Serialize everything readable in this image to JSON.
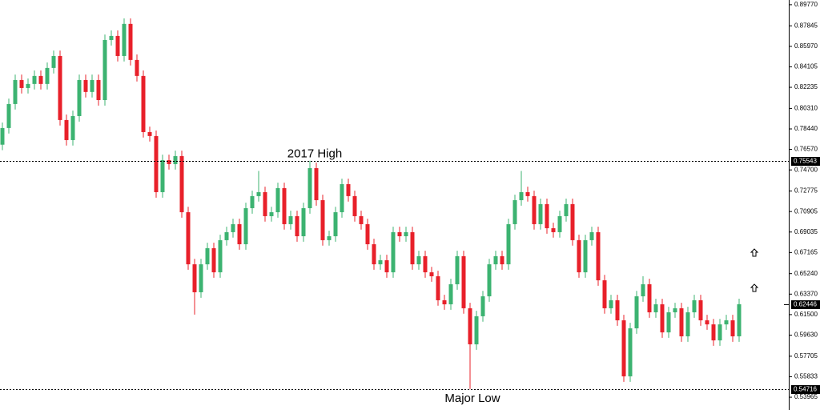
{
  "chart_data": {
    "type": "candlestick",
    "ylim": [
      0.528,
      0.902
    ],
    "yticks": [
      {
        "value": 0.8977,
        "label": "0.89770"
      },
      {
        "value": 0.87845,
        "label": "0.87845"
      },
      {
        "value": 0.8597,
        "label": "0.85970"
      },
      {
        "value": 0.84105,
        "label": "0.84105"
      },
      {
        "value": 0.82235,
        "label": "0.82235"
      },
      {
        "value": 0.8031,
        "label": "0.80310"
      },
      {
        "value": 0.7844,
        "label": "0.78440"
      },
      {
        "value": 0.7657,
        "label": "0.76570"
      },
      {
        "value": 0.747,
        "label": "0.74700"
      },
      {
        "value": 0.72775,
        "label": "0.72775"
      },
      {
        "value": 0.70905,
        "label": "0.70905"
      },
      {
        "value": 0.69035,
        "label": "0.69035"
      },
      {
        "value": 0.67165,
        "label": "0.67165"
      },
      {
        "value": 0.6524,
        "label": "0.65240"
      },
      {
        "value": 0.6337,
        "label": "0.63370"
      },
      {
        "value": 0.615,
        "label": "0.61500"
      },
      {
        "value": 0.5963,
        "label": "0.59630"
      },
      {
        "value": 0.57705,
        "label": "0.57705"
      },
      {
        "value": 0.55833,
        "label": "0.55833"
      },
      {
        "value": 0.53965,
        "label": "0.53965"
      }
    ],
    "up_color": "#3cb371",
    "down_color": "#e8202a",
    "levels": [
      {
        "value": 0.75543,
        "label": "0.75543",
        "annotation": "2017 High",
        "dashed": true
      },
      {
        "value": 0.54716,
        "label": "0.54716",
        "annotation": "Major Low",
        "dashed": true
      },
      {
        "value": 0.62446,
        "label": "0.62446",
        "dashed": false
      }
    ],
    "open": [
      0.77,
      0.7852,
      0.8071,
      0.829,
      0.8217,
      0.8254,
      0.8327,
      0.8254,
      0.84,
      0.8509,
      0.7925,
      0.7742,
      0.7961,
      0.829,
      0.8181,
      0.829,
      0.8107,
      0.8655,
      0.8692,
      0.8509,
      0.8802,
      0.8473,
      0.8327,
      0.7815,
      0.7779,
      0.7267,
      0.7559,
      0.7523,
      0.7596,
      0.7084,
      0.6609,
      0.6354,
      0.6609,
      0.6756,
      0.6536,
      0.6829,
      0.6902,
      0.6975,
      0.6792,
      0.7121,
      0.7231,
      0.7267,
      0.7048,
      0.7084,
      0.7304,
      0.6975,
      0.7048,
      0.6865,
      0.7121,
      0.7486,
      0.7194,
      0.6829,
      0.6865,
      0.7084,
      0.734,
      0.7231,
      0.7048,
      0.6975,
      0.6792,
      0.6609,
      0.6646,
      0.6536,
      0.6902,
      0.6865,
      0.6902,
      0.6609,
      0.6683,
      0.6536,
      0.65,
      0.6281,
      0.6244,
      0.6427,
      0.6683,
      0.6208,
      0.5879,
      0.6135,
      0.6317,
      0.6609,
      0.6683,
      0.6609,
      0.6975,
      0.7194,
      0.7267,
      0.7231,
      0.6975,
      0.7158,
      0.6938,
      0.6902,
      0.7048,
      0.7158,
      0.6829,
      0.6536,
      0.6829,
      0.6902,
      0.6463,
      0.6208,
      0.6281,
      0.6098,
      0.5587,
      0.6025,
      0.6317,
      0.6427,
      0.6171,
      0.6244,
      0.5988,
      0.6171,
      0.6208,
      0.5952,
      0.6171,
      0.6281,
      0.6098,
      0.6061,
      0.5915,
      0.6061,
      0.6098,
      0.5952
    ],
    "high": [
      0.7902,
      0.8121,
      0.834,
      0.834,
      0.8304,
      0.8377,
      0.8377,
      0.845,
      0.8559,
      0.8559,
      0.7975,
      0.8011,
      0.834,
      0.834,
      0.834,
      0.834,
      0.8705,
      0.8742,
      0.8742,
      0.8852,
      0.8852,
      0.8523,
      0.8377,
      0.7865,
      0.7829,
      0.7609,
      0.7609,
      0.7646,
      0.7646,
      0.7134,
      0.6659,
      0.6659,
      0.6806,
      0.6806,
      0.6879,
      0.6952,
      0.7025,
      0.7025,
      0.7171,
      0.7281,
      0.746,
      0.7317,
      0.7134,
      0.7354,
      0.7354,
      0.7098,
      0.7098,
      0.7171,
      0.7554,
      0.7536,
      0.7244,
      0.6915,
      0.7134,
      0.739,
      0.739,
      0.7281,
      0.7098,
      0.7025,
      0.6842,
      0.6696,
      0.6696,
      0.6952,
      0.6952,
      0.6952,
      0.6952,
      0.6733,
      0.6733,
      0.6586,
      0.655,
      0.6331,
      0.6477,
      0.6733,
      0.6733,
      0.6258,
      0.6185,
      0.6367,
      0.6659,
      0.6733,
      0.6733,
      0.7025,
      0.7244,
      0.746,
      0.7317,
      0.7281,
      0.7208,
      0.7208,
      0.6988,
      0.7098,
      0.7208,
      0.7208,
      0.6879,
      0.6879,
      0.6952,
      0.6952,
      0.6513,
      0.6331,
      0.6331,
      0.6148,
      0.6075,
      0.6367,
      0.65,
      0.6477,
      0.6294,
      0.6294,
      0.6221,
      0.6258,
      0.6258,
      0.6221,
      0.6331,
      0.6331,
      0.6148,
      0.6111,
      0.6111,
      0.6148,
      0.6148,
      0.6295
    ],
    "low": [
      0.765,
      0.7802,
      0.8021,
      0.8167,
      0.8167,
      0.8204,
      0.8204,
      0.8204,
      0.835,
      0.7875,
      0.7692,
      0.7692,
      0.7911,
      0.8131,
      0.8131,
      0.8057,
      0.8057,
      0.8605,
      0.8459,
      0.8459,
      0.8423,
      0.8277,
      0.7765,
      0.7729,
      0.7217,
      0.7217,
      0.7473,
      0.7473,
      0.7034,
      0.6559,
      0.615,
      0.6304,
      0.6559,
      0.6486,
      0.6486,
      0.6779,
      0.6852,
      0.6742,
      0.6742,
      0.7071,
      0.7181,
      0.6998,
      0.6998,
      0.7034,
      0.6925,
      0.6925,
      0.6815,
      0.6815,
      0.7071,
      0.7144,
      0.6779,
      0.6779,
      0.6815,
      0.7034,
      0.7181,
      0.6998,
      0.6925,
      0.6742,
      0.6559,
      0.6559,
      0.6486,
      0.6486,
      0.6815,
      0.6815,
      0.6559,
      0.6559,
      0.6486,
      0.645,
      0.6231,
      0.6194,
      0.6194,
      0.6377,
      0.6158,
      0.5472,
      0.5829,
      0.6085,
      0.6267,
      0.6559,
      0.6559,
      0.6559,
      0.6925,
      0.7144,
      0.7181,
      0.6925,
      0.6925,
      0.6888,
      0.6852,
      0.6852,
      0.6998,
      0.6779,
      0.6486,
      0.6486,
      0.6779,
      0.6413,
      0.6158,
      0.6158,
      0.6048,
      0.5537,
      0.5537,
      0.5975,
      0.6267,
      0.6121,
      0.6121,
      0.5938,
      0.5938,
      0.6121,
      0.5902,
      0.5902,
      0.6121,
      0.6048,
      0.6011,
      0.5865,
      0.5865,
      0.6011,
      0.5902,
      0.5902
    ],
    "close": [
      0.7852,
      0.8071,
      0.829,
      0.8217,
      0.8254,
      0.8327,
      0.8254,
      0.84,
      0.8509,
      0.7925,
      0.7742,
      0.7961,
      0.829,
      0.8181,
      0.829,
      0.8107,
      0.8655,
      0.8692,
      0.8509,
      0.8802,
      0.8473,
      0.8327,
      0.7815,
      0.7779,
      0.7267,
      0.7559,
      0.7523,
      0.7596,
      0.7084,
      0.6609,
      0.6354,
      0.6609,
      0.6756,
      0.6536,
      0.6829,
      0.6902,
      0.6975,
      0.6792,
      0.7121,
      0.7231,
      0.7267,
      0.7048,
      0.7084,
      0.7304,
      0.6975,
      0.7048,
      0.6865,
      0.7121,
      0.7486,
      0.7194,
      0.6829,
      0.6865,
      0.7084,
      0.734,
      0.7231,
      0.7048,
      0.6975,
      0.6792,
      0.6609,
      0.6646,
      0.6536,
      0.6902,
      0.6865,
      0.6902,
      0.6609,
      0.6683,
      0.6536,
      0.65,
      0.6281,
      0.6244,
      0.6427,
      0.6683,
      0.6208,
      0.5879,
      0.6135,
      0.6317,
      0.6609,
      0.6683,
      0.6609,
      0.6975,
      0.7194,
      0.7267,
      0.7231,
      0.6975,
      0.7158,
      0.6938,
      0.6902,
      0.7048,
      0.7158,
      0.6829,
      0.6536,
      0.6829,
      0.6902,
      0.6463,
      0.6208,
      0.6281,
      0.6098,
      0.5587,
      0.6025,
      0.6317,
      0.6427,
      0.6171,
      0.6244,
      0.5988,
      0.6171,
      0.6208,
      0.5952,
      0.6171,
      0.6281,
      0.6098,
      0.6061,
      0.5915,
      0.6061,
      0.6098,
      0.5952,
      0.6245
    ]
  }
}
